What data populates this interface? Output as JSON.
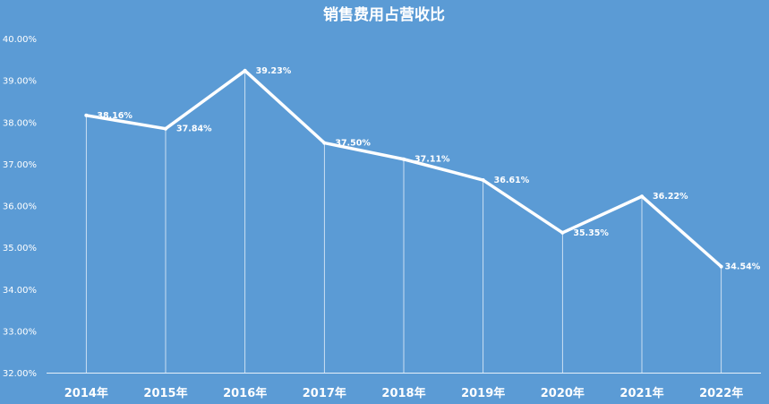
{
  "chart_data": {
    "type": "line",
    "title": "销售费用占营收比",
    "categories": [
      "2014年",
      "2015年",
      "2016年",
      "2017年",
      "2018年",
      "2019年",
      "2020年",
      "2021年",
      "2022年"
    ],
    "series": [
      {
        "values": [
          38.16,
          37.84,
          39.23,
          37.5,
          37.11,
          36.61,
          35.35,
          36.22,
          34.54
        ],
        "labels": [
          "38.16%",
          "37.84%",
          "39.23%",
          "37.50%",
          "37.11%",
          "36.61%",
          "35.35%",
          "36.22%",
          "34.54%"
        ]
      }
    ],
    "ylim": [
      32,
      40
    ],
    "yticks": [
      "32.00%",
      "33.00%",
      "34.00%",
      "35.00%",
      "36.00%",
      "37.00%",
      "38.00%",
      "39.00%",
      "40.00%"
    ],
    "grid": false,
    "drop_lines": true,
    "colors": {
      "background": "#5b9bd5",
      "line": "#ffffff",
      "text": "#ffffff"
    }
  }
}
